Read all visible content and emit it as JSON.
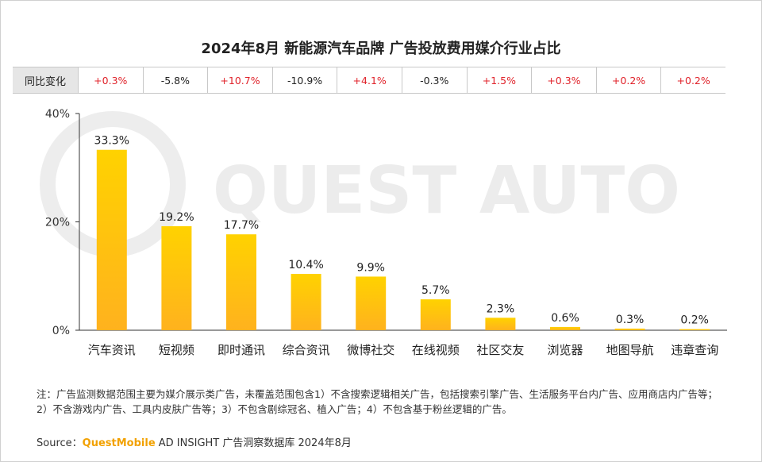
{
  "title": "2024年8月 新能源汽车品牌 广告投放费用媒介行业占比",
  "yoy": {
    "label": "同比变化",
    "values": [
      "+0.3%",
      "-5.8%",
      "+10.7%",
      "-10.9%",
      "+4.1%",
      "-0.3%",
      "+1.5%",
      "+0.3%",
      "+0.2%",
      "+0.2%"
    ]
  },
  "watermark": "QUEST AUTO",
  "chart_data": {
    "type": "bar",
    "title": "2024年8月 新能源汽车品牌 广告投放费用媒介行业占比",
    "categories": [
      "汽车资讯",
      "短视频",
      "即时通讯",
      "综合资讯",
      "微博社交",
      "在线视频",
      "社区交友",
      "浏览器",
      "地图导航",
      "违章查询"
    ],
    "values": [
      33.3,
      19.2,
      17.7,
      10.4,
      9.9,
      5.7,
      2.3,
      0.6,
      0.3,
      0.2
    ],
    "value_labels": [
      "33.3%",
      "19.2%",
      "17.7%",
      "10.4%",
      "9.9%",
      "5.7%",
      "2.3%",
      "0.6%",
      "0.3%",
      "0.2%"
    ],
    "ylim": [
      0,
      40
    ],
    "yticks": [
      0,
      20,
      40
    ],
    "ytick_labels": [
      "0%",
      "20%",
      "40%"
    ],
    "xlabel": "",
    "ylabel": "",
    "grid": false,
    "colors": {
      "bar_top": "#ffd200",
      "bar_bottom": "#ffb21e"
    }
  },
  "notes": "注：广告监测数据范围主要为媒介展示类广告，未覆盖范围包含1）不含搜索逻辑相关广告，包括搜索引擎广告、生活服务平台内广告、应用商店内广告等；2）不含游戏内广告、工具内皮肤广告等；3）不包含剧综冠名、植入广告；4）不包含基于粉丝逻辑的广告。",
  "source": {
    "prefix": "Source：",
    "brand": "QuestMobile",
    "rest": " AD INSIGHT 广告洞察数据库 2024年8月"
  }
}
